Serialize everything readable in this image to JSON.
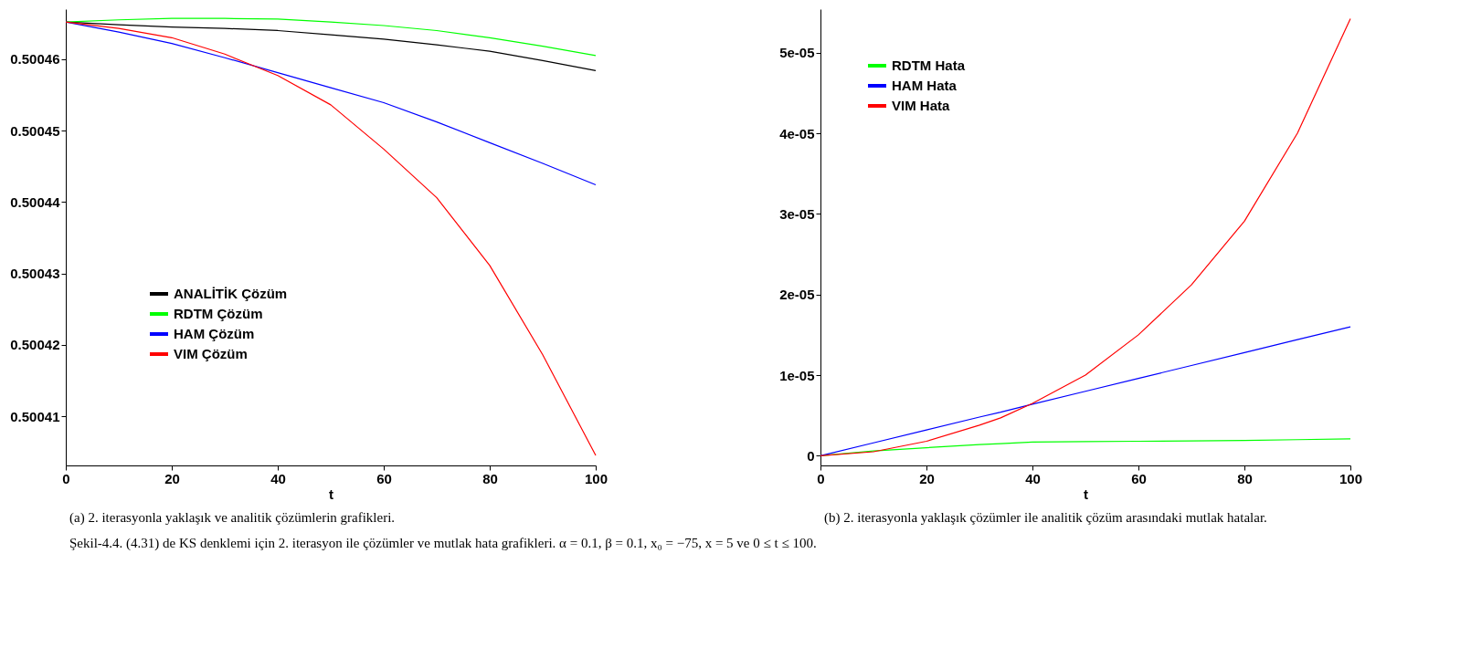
{
  "chart_data": [
    {
      "type": "line",
      "xlabel": "t",
      "x": [
        0,
        10,
        20,
        30,
        40,
        50,
        60,
        70,
        80,
        90,
        100
      ],
      "series": [
        {
          "name": "ANALİTİK Çözüm",
          "color": "#000000",
          "values": [
            0.5004652,
            0.5004648,
            0.5004645,
            0.5004643,
            0.500464,
            0.5004634,
            0.5004628,
            0.500462,
            0.5004611,
            0.5004598,
            0.5004584
          ]
        },
        {
          "name": "RDTM Çözüm",
          "color": "#00ff00",
          "values": [
            0.5004652,
            0.5004655,
            0.5004657,
            0.5004657,
            0.5004656,
            0.5004652,
            0.5004647,
            0.500464,
            0.500463,
            0.5004618,
            0.5004605
          ]
        },
        {
          "name": "HAM Çözüm",
          "color": "#0000ff",
          "values": [
            0.5004652,
            0.5004638,
            0.5004622,
            0.5004602,
            0.5004581,
            0.500456,
            0.5004539,
            0.5004512,
            0.5004483,
            0.5004454,
            0.5004424
          ]
        },
        {
          "name": "VIM Çözüm",
          "color": "#ff0000",
          "values": [
            0.5004652,
            0.5004643,
            0.500463,
            0.5004607,
            0.5004577,
            0.5004536,
            0.5004474,
            0.5004406,
            0.5004311,
            0.5004186,
            0.5004045
          ]
        }
      ],
      "xlim": [
        0,
        100
      ],
      "xticks": [
        0,
        20,
        40,
        60,
        80,
        100
      ],
      "ylim": [
        0.5004031,
        0.500467
      ],
      "yticks": [
        0.50041,
        0.50042,
        0.50043,
        0.50044,
        0.50045,
        0.50046
      ],
      "grid": false,
      "legend": "bottom left",
      "marker": "none",
      "line_style": "solid",
      "annotations": [
        "(a) 2. iterasyonla yaklaşık ve analitik çözümlerin grafikleri."
      ]
    },
    {
      "type": "line",
      "xlabel": "t",
      "x": [
        0,
        10,
        20,
        30,
        34,
        40,
        50,
        60,
        70,
        80,
        90,
        100
      ],
      "series": [
        {
          "name": "RDTM Hata",
          "color": "#00ff00",
          "values": [
            0,
            6e-07,
            1e-06,
            1.4e-06,
            1.5e-06,
            1.7e-06,
            1.75e-06,
            1.8e-06,
            1.85e-06,
            1.9e-06,
            2e-06,
            2.1e-06
          ]
        },
        {
          "name": "HAM Hata",
          "color": "#0000ff",
          "values": [
            0,
            1.6e-06,
            3.2e-06,
            4.8e-06,
            5.4e-06,
            6.4e-06,
            8e-06,
            9.6e-06,
            1.12e-05,
            1.28e-05,
            1.44e-05,
            1.6e-05
          ]
        },
        {
          "name": "VIM Hata",
          "color": "#ff0000",
          "values": [
            0,
            5e-07,
            1.8e-06,
            3.8e-06,
            4.7e-06,
            6.5e-06,
            1e-05,
            1.5e-05,
            2.12e-05,
            2.91e-05,
            4e-05,
            5.42e-05
          ]
        }
      ],
      "xlim": [
        0,
        100
      ],
      "xticks": [
        0,
        20,
        40,
        60,
        80,
        100
      ],
      "ylim": [
        -1.2e-06,
        5.54e-05
      ],
      "yticks": [
        0,
        {
          "value": 1e-05,
          "label": "1e-05"
        },
        {
          "value": 2e-05,
          "label": "2e-05"
        },
        {
          "value": 3e-05,
          "label": "3e-05"
        },
        {
          "value": 4e-05,
          "label": "4e-05"
        },
        {
          "value": 5e-05,
          "label": "5e-05"
        }
      ],
      "grid": false,
      "legend": "top left",
      "marker": "none",
      "line_style": "solid",
      "annotations": [
        "(b) 2. iterasyonla yaklaşık çözümler ile analitik çözüm arasındaki mutlak hatalar.",
        "Şekil-4.4. (4.31) de KS denklemi için 2. iterasyon ile çözümler ve mutlak hata grafikleri.  α = 0.1,  β = 0.1,  x₀ = −75,  x = 5 ve 0 ≤ t ≤ 100."
      ]
    }
  ]
}
